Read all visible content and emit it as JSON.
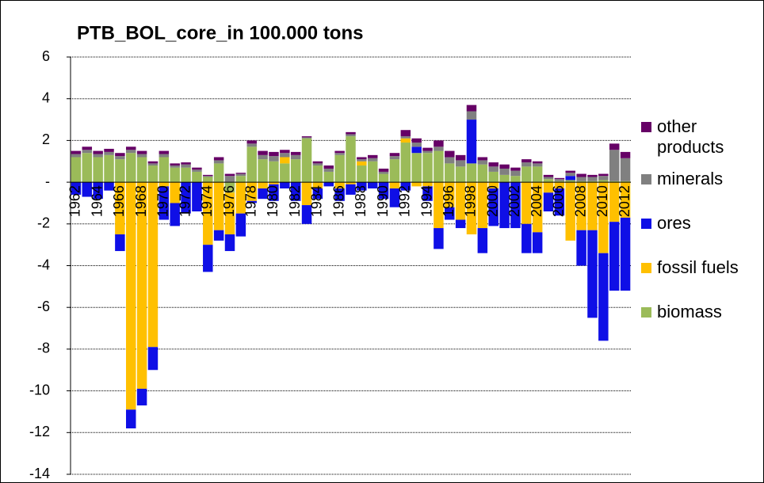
{
  "chart_data": {
    "type": "bar",
    "stacked": true,
    "title": "PTB_BOL_core_in 100.000 tons",
    "categories": [
      "1962",
      null,
      "1964",
      null,
      "1966",
      null,
      "1968",
      null,
      "1970",
      null,
      "1972",
      null,
      "1974",
      null,
      "1976",
      null,
      "1978",
      null,
      "1980",
      null,
      "1982",
      null,
      "1984",
      null,
      "1986",
      null,
      "1988",
      null,
      "1990",
      null,
      "1992",
      null,
      "1994",
      null,
      "1996",
      null,
      "1998",
      null,
      "2000",
      null,
      "2002",
      null,
      "2004",
      null,
      "2006",
      null,
      "2008",
      null,
      "2010",
      null,
      "2012"
    ],
    "series": [
      {
        "name": "biomass",
        "color": "#9bbb59",
        "values": [
          1.2,
          1.4,
          1.2,
          1.3,
          1.1,
          1.4,
          1.2,
          0.8,
          1.2,
          0.7,
          0.7,
          0.5,
          0.25,
          0.9,
          -0.5,
          0.3,
          1.7,
          1.1,
          1.0,
          0.9,
          1.1,
          2.1,
          0.8,
          0.5,
          1.3,
          2.2,
          0.8,
          1.0,
          0.4,
          1.1,
          1.9,
          1.4,
          1.4,
          1.5,
          0.9,
          0.75,
          0.9,
          0.85,
          0.5,
          0.35,
          0.3,
          0.75,
          0.75,
          0.15,
          0.05,
          0.1,
          0.05,
          0.05,
          0.1,
          0.05,
          0.05
        ]
      },
      {
        "name": "fossil fuels",
        "color": "#ffc000",
        "values": [
          0,
          0,
          0,
          0,
          -2.5,
          -10.9,
          -9.9,
          -7.9,
          -0.2,
          -1.0,
          0,
          0,
          -3.0,
          -2.3,
          -2.0,
          -1.5,
          -0.9,
          -0.3,
          -0.1,
          0.3,
          0,
          -1.1,
          -0.3,
          0,
          -0.3,
          -0.1,
          0.2,
          0,
          0,
          -0.3,
          0.2,
          -0.2,
          -0.2,
          -2.2,
          -1.2,
          -1.8,
          -2.5,
          -2.2,
          -0.3,
          0,
          0,
          -2.0,
          -2.4,
          -0.5,
          -0.3,
          -2.8,
          -2.3,
          -2.3,
          -3.4,
          -1.9,
          -1.7
        ]
      },
      {
        "name": "ores",
        "color": "#0f0fe6",
        "values": [
          -0.6,
          -0.7,
          -0.8,
          -0.4,
          -0.8,
          -0.9,
          -0.8,
          -1.1,
          -1.6,
          -1.1,
          -1.5,
          -1.4,
          -1.3,
          -0.5,
          -0.8,
          -1.1,
          -0.1,
          -0.5,
          -0.8,
          -0.3,
          -0.9,
          -0.9,
          -0.5,
          -0.2,
          -0.6,
          -0.5,
          -0.4,
          -0.3,
          -0.8,
          -0.9,
          -0.4,
          0.3,
          -0.7,
          -1.0,
          -0.6,
          -0.4,
          2.1,
          -1.2,
          -1.8,
          -2.2,
          -2.2,
          -1.4,
          -1.0,
          -0.9,
          -1.3,
          0.2,
          -1.7,
          -4.2,
          -4.2,
          -3.3,
          -3.5
        ]
      },
      {
        "name": "minerals",
        "color": "#808080",
        "values": [
          0.15,
          0.15,
          0.15,
          0.15,
          0.15,
          0.15,
          0.15,
          0.1,
          0.15,
          0.1,
          0.15,
          0.1,
          0.05,
          0.15,
          0.3,
          0.1,
          0.15,
          0.2,
          0.25,
          0.2,
          0.2,
          0.05,
          0.1,
          0.15,
          0.1,
          0.1,
          0.1,
          0.15,
          0.1,
          0.15,
          0.1,
          0.2,
          0.1,
          0.2,
          0.3,
          0.3,
          0.4,
          0.2,
          0.25,
          0.3,
          0.25,
          0.2,
          0.15,
          0.1,
          0.1,
          0.15,
          0.2,
          0.2,
          0.2,
          1.5,
          1.1
        ]
      },
      {
        "name": "other products",
        "color": "#660066",
        "values": [
          0.15,
          0.15,
          0.15,
          0.15,
          0.15,
          0.15,
          0.15,
          0.1,
          0.15,
          0.1,
          0.1,
          0.1,
          0.05,
          0.15,
          0.1,
          0.05,
          0.15,
          0.2,
          0.2,
          0.15,
          0.15,
          0.05,
          0.1,
          0.15,
          0.1,
          0.1,
          0.1,
          0.15,
          0.15,
          0.15,
          0.3,
          0.2,
          0.15,
          0.3,
          0.3,
          0.25,
          0.3,
          0.15,
          0.2,
          0.2,
          0.15,
          0.15,
          0.1,
          0.1,
          0.05,
          0.1,
          0.15,
          0.1,
          0.1,
          0.3,
          0.3
        ]
      }
    ],
    "ylim": [
      -14,
      6
    ],
    "yticks": [
      -14,
      -12,
      -10,
      -8,
      -6,
      -4,
      -2,
      {
        "value": 0,
        "label": "-"
      },
      2,
      4,
      6
    ],
    "grid": true,
    "legend": "right"
  }
}
